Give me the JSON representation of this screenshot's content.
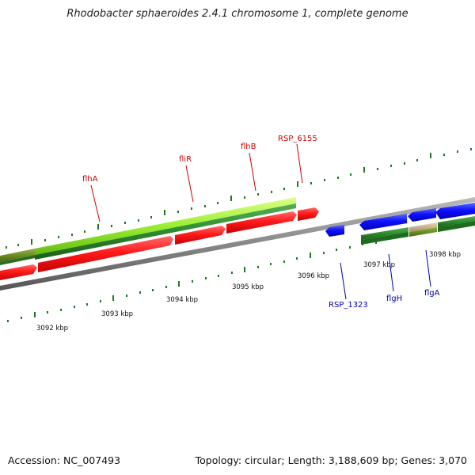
{
  "title": "Rhodobacter sphaeroides 2.4.1 chromosome 1, complete genome",
  "footer": {
    "accession": "Accession: NC_007493",
    "summary": "Topology: circular; Length: 3,188,609 bp; Genes: 3,070"
  },
  "colors": {
    "forward_cds": "#ff0000",
    "reverse_cds": "#0000ff",
    "highlight_green": "#99ee33",
    "dark_green": "#2e8b2e",
    "olive": "#6b8e23",
    "tan": "#c8b48c",
    "backbone": "#888888",
    "tick": "#1f7a1f",
    "forward_label": "#cc0000",
    "reverse_label": "#0000aa"
  },
  "scale_labels": [
    "3092 kbp",
    "3093 kbp",
    "3094 kbp",
    "3095 kbp",
    "3096 kbp",
    "3097 kbp",
    "3098 kbp"
  ],
  "forward_genes": [
    "flhA",
    "fliR",
    "flhB",
    "RSP_6155"
  ],
  "reverse_genes": [
    "RSP_1323",
    "flgH",
    "flgA"
  ]
}
